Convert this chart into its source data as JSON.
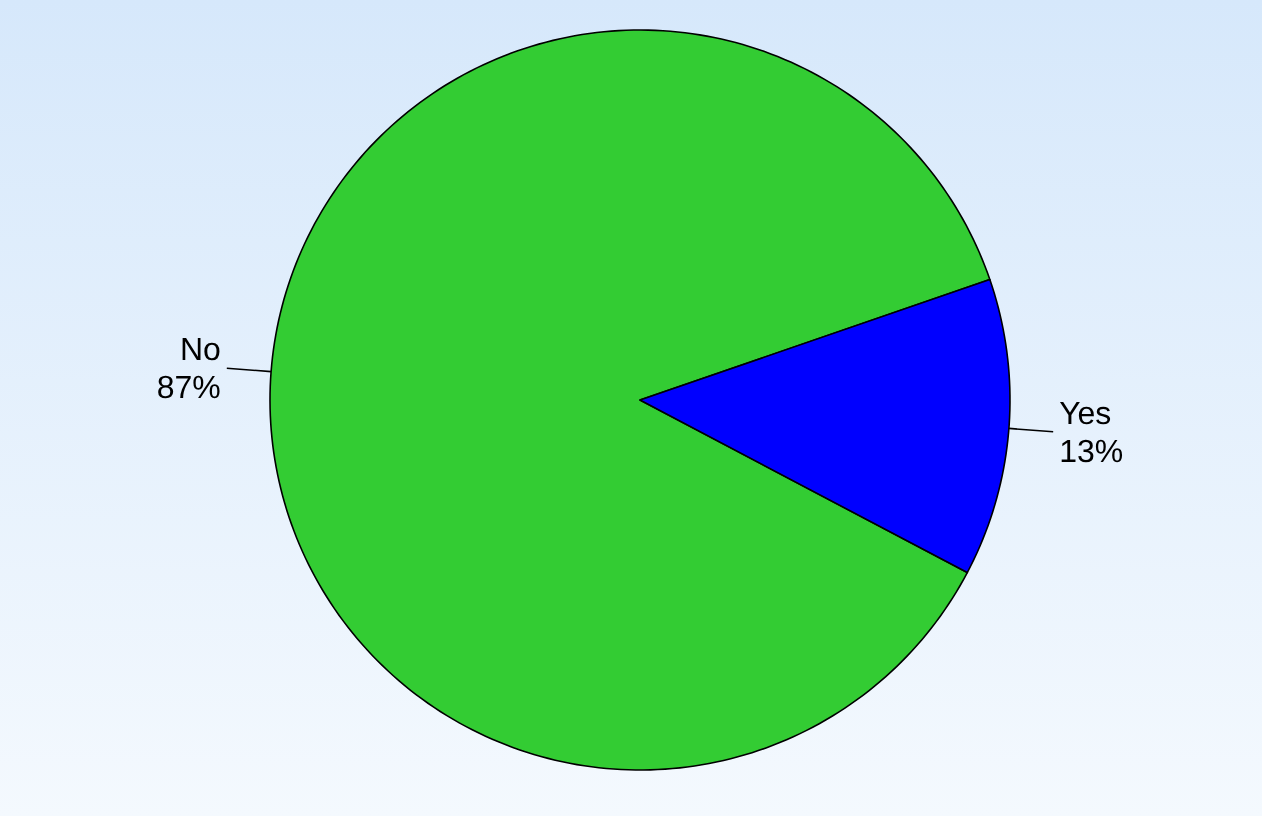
{
  "chart_data": {
    "type": "pie",
    "categories": [
      "No",
      "Yes"
    ],
    "values": [
      87,
      13
    ],
    "colors": [
      "#33cc33",
      "#0000ff"
    ],
    "value_labels": [
      "87%",
      "13%"
    ]
  }
}
